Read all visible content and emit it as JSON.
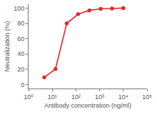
{
  "chart_data": {
    "type": "line",
    "x_label": "Antibody concentration (ng/ml)",
    "y_label": "Neutralization (%)",
    "x": [
      4.6,
      13.7,
      41,
      123,
      370,
      1111,
      3333,
      10000
    ],
    "values": [
      9.5,
      20.5,
      80,
      92,
      97,
      99,
      99.5,
      100
    ],
    "color": "#e8262a",
    "marker": "circle",
    "line_style": "solid",
    "log": "x",
    "grid": false,
    "xlim": [
      1,
      100000
    ],
    "xticks": [
      {
        "value": 1,
        "label": "10⁰"
      },
      {
        "value": 10,
        "label": "10¹"
      },
      {
        "value": 100,
        "label": "10²"
      },
      {
        "value": 1000,
        "label": "10³"
      },
      {
        "value": 10000,
        "label": "10⁴"
      },
      {
        "value": 100000,
        "label": "10⁵"
      }
    ],
    "ylim": [
      -5,
      105
    ],
    "yticks": [
      0,
      20,
      40,
      60,
      80,
      100
    ]
  }
}
